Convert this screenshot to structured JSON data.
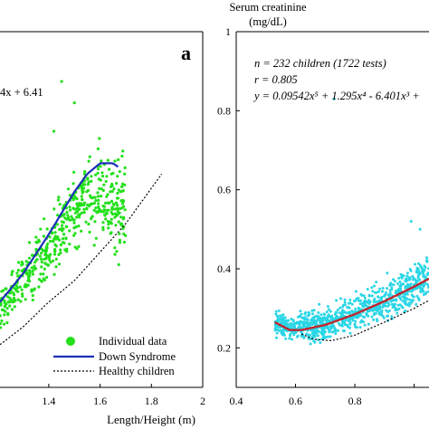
{
  "chart_data": [
    {
      "panel": "left",
      "type": "scatter",
      "panel_letter": "a",
      "equation_fragment": "4x + 6.41",
      "xlabel": "Length/Height (m)",
      "xlim": [
        1.21,
        2.0
      ],
      "ylim": [
        0.0,
        1.0
      ],
      "x_ticks": [
        1.4,
        1.6,
        1.8,
        2
      ],
      "x_tick_labels": [
        "1.4",
        "1.6",
        "1.8",
        "2"
      ],
      "scatter_color": "#22e01a",
      "legend": {
        "position": "bottom-right",
        "entries": [
          {
            "label": "Individual data",
            "marker": "dot",
            "color": "#22e01a"
          },
          {
            "label": "Down Syndrome",
            "marker": "line",
            "color": "#1c2fb8"
          },
          {
            "label": "Healthy children",
            "marker": "dashed",
            "color": "#000000"
          }
        ]
      },
      "series": [
        {
          "name": "Down Syndrome",
          "type": "line",
          "color": "#1c2fb8",
          "x": [
            1.21,
            1.3,
            1.4,
            1.5,
            1.55,
            1.6,
            1.65,
            1.67
          ],
          "y": [
            0.24,
            0.32,
            0.43,
            0.55,
            0.6,
            0.63,
            0.63,
            0.62
          ]
        },
        {
          "name": "Healthy children",
          "type": "dashed",
          "color": "#000000",
          "x": [
            1.21,
            1.3,
            1.4,
            1.5,
            1.6,
            1.7,
            1.8,
            1.84
          ],
          "y": [
            0.12,
            0.17,
            0.24,
            0.3,
            0.38,
            0.46,
            0.56,
            0.6
          ]
        }
      ],
      "scatter_spread": {
        "x_range": [
          1.21,
          1.7
        ],
        "center_y_at_x": [
          [
            1.21,
            0.22
          ],
          [
            1.3,
            0.3
          ],
          [
            1.4,
            0.38
          ],
          [
            1.5,
            0.5
          ],
          [
            1.6,
            0.56
          ],
          [
            1.7,
            0.5
          ]
        ],
        "extremes": [
          [
            1.45,
            0.86
          ],
          [
            1.5,
            0.8
          ],
          [
            1.42,
            0.72
          ]
        ]
      }
    },
    {
      "panel": "right",
      "type": "scatter",
      "ylabel": "Serum creatinine\n(mg/dL)",
      "ylabel_line1": "Serum creatinine",
      "ylabel_line2": "(mg/dL)",
      "n_text": "n = 232 children (1722 tests)",
      "r_text": "r = 0.805",
      "y_text": "y = 0.09542x⁵ + 1.295x⁴ - 6.401x³ +",
      "xlim": [
        0.4,
        1.05
      ],
      "ylim": [
        0.1,
        1.0
      ],
      "x_ticks": [
        0.4,
        0.6,
        0.8,
        1.0
      ],
      "x_tick_labels": [
        "0.4",
        "0.6",
        "0.8",
        ""
      ],
      "y_ticks": [
        0.2,
        0.4,
        0.6,
        0.8,
        1.0
      ],
      "y_tick_labels": [
        "0.2",
        "0.4",
        "0.6",
        "0.8",
        "1"
      ],
      "scatter_color": "#2ad6e6",
      "series": [
        {
          "name": "Down Syndrome",
          "type": "line",
          "color": "#c0272d",
          "x": [
            0.53,
            0.58,
            0.62,
            0.7,
            0.8,
            0.9,
            1.0,
            1.05
          ],
          "y": [
            0.265,
            0.245,
            0.245,
            0.258,
            0.285,
            0.318,
            0.355,
            0.375
          ]
        },
        {
          "name": "Healthy children",
          "type": "dashed",
          "color": "#000000",
          "x": [
            0.62,
            0.66,
            0.72,
            0.8,
            0.9,
            1.0,
            1.05
          ],
          "y": [
            0.235,
            0.222,
            0.218,
            0.232,
            0.265,
            0.3,
            0.32
          ]
        }
      ],
      "scatter_spread": {
        "x_range": [
          0.53,
          1.05
        ],
        "center_y_at_x": [
          [
            0.53,
            0.26
          ],
          [
            0.6,
            0.25
          ],
          [
            0.7,
            0.26
          ],
          [
            0.8,
            0.29
          ],
          [
            0.9,
            0.32
          ],
          [
            1.0,
            0.36
          ],
          [
            1.05,
            0.38
          ]
        ],
        "extremes": [
          [
            0.73,
            0.83
          ],
          [
            0.99,
            0.52
          ],
          [
            1.02,
            0.5
          ]
        ]
      }
    }
  ]
}
